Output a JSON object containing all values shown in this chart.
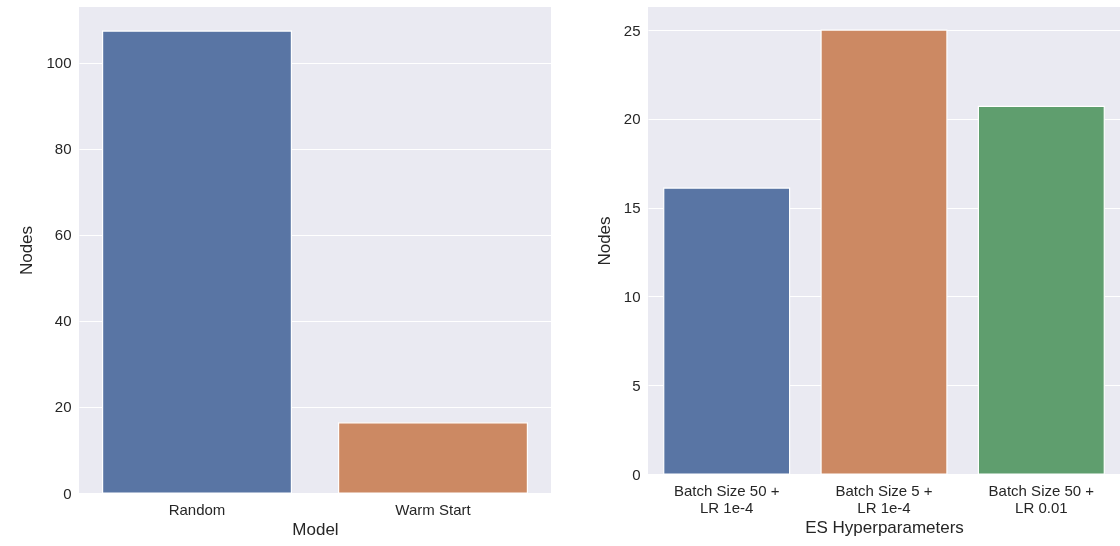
{
  "chart_data": [
    {
      "type": "bar",
      "categories": [
        "Random",
        "Warm Start"
      ],
      "values": [
        107.3,
        16.3
      ],
      "colors": [
        "#5975a4",
        "#cc8963"
      ],
      "xlabel": "Model",
      "ylabel": "Nodes",
      "ylim": [
        0,
        112.9
      ],
      "yticks": [
        0,
        20,
        40,
        60,
        80,
        100
      ],
      "grid": "y"
    },
    {
      "type": "bar",
      "categories": [
        "Batch Size 50 +\nLR 1e-4",
        "Batch Size 5 +\nLR 1e-4",
        "Batch Size 50 +\nLR 0.01"
      ],
      "values": [
        16.1,
        25.0,
        20.7
      ],
      "colors": [
        "#5975a4",
        "#cc8963",
        "#5f9e6e"
      ],
      "xlabel": "ES Hyperparameters",
      "ylabel": "Nodes",
      "ylim": [
        0,
        26.3
      ],
      "yticks": [
        0,
        5,
        10,
        15,
        20,
        25
      ],
      "grid": "y"
    }
  ]
}
